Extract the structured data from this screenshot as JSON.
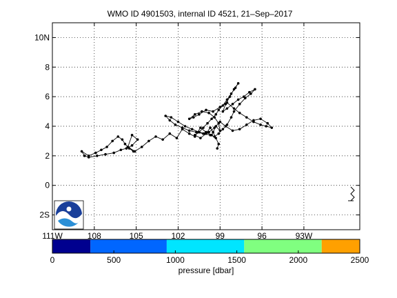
{
  "chart_data": {
    "type": "scatter",
    "title": "WMO ID 4901503, internal ID 4521, 21–Sep–2017",
    "xlabel": "",
    "ylabel": "",
    "xlim": [
      -111,
      -89
    ],
    "ylim": [
      -3,
      11
    ],
    "grid": true,
    "x_ticks": [
      {
        "value": -111,
        "label": "111W"
      },
      {
        "value": -108,
        "label": "108"
      },
      {
        "value": -105,
        "label": "105"
      },
      {
        "value": -102,
        "label": "102"
      },
      {
        "value": -99,
        "label": "99"
      },
      {
        "value": -96,
        "label": "96"
      },
      {
        "value": -93,
        "label": "93W"
      }
    ],
    "y_ticks": [
      {
        "value": -2,
        "label": "2S"
      },
      {
        "value": 0,
        "label": "0"
      },
      {
        "value": 2,
        "label": "2"
      },
      {
        "value": 4,
        "label": "4"
      },
      {
        "value": 6,
        "label": "6"
      },
      {
        "value": 8,
        "label": "8"
      },
      {
        "value": 10,
        "label": "10N"
      }
    ],
    "series": [
      {
        "x": [
          -105.2,
          -105.5,
          -105.8,
          -106.0,
          -106.3,
          -106.7,
          -107.1,
          -107.5,
          -107.9,
          -108.4,
          -108.9,
          -108.7,
          -108.4,
          -107.8,
          -107.2,
          -106.6,
          -106.1,
          -105.7,
          -105.3,
          -104.9,
          -105.3,
          -105.6,
          -105.1,
          -104.6,
          -104.1,
          -103.6,
          -103.1,
          -102.6,
          -102.1,
          -101.7,
          -101.2,
          -100.8,
          -100.4,
          -100.0,
          -99.6,
          -99.3,
          -99.0,
          -99.1,
          -99.4,
          -99.8,
          -100.3,
          -100.8,
          -101.2,
          -100.9,
          -100.5,
          -100.0,
          -99.5,
          -99.0,
          -98.5,
          -98.0,
          -97.6,
          -97.1,
          -96.6,
          -96.1,
          -95.7,
          -95.3,
          -95.6,
          -96.1,
          -96.6,
          -97.1,
          -97.6,
          -98.1,
          -98.6,
          -99.0,
          -99.4,
          -99.8,
          -100.2,
          -100.7,
          -101.2,
          -101.7,
          -102.2,
          -102.6,
          -102.9,
          -102.5,
          -102.0,
          -101.5,
          -101.0,
          -100.5,
          -100.1,
          -99.7,
          -99.4,
          -99.1,
          -98.8,
          -98.5,
          -98.2,
          -98.0,
          -97.6,
          -97.2,
          -96.8,
          -96.5,
          -96.9,
          -97.3,
          -97.7,
          -98.1,
          -98.5,
          -98.8,
          -98.6,
          -98.3,
          -98.0,
          -97.7,
          -97.9,
          -98.2,
          -98.5,
          -98.8,
          -99.1,
          -99.3,
          -99.6,
          -99.9,
          -100.2,
          -100.5,
          -100.8,
          -100.4,
          -100.0,
          -99.7,
          -99.5,
          -99.3,
          -99.1,
          -99.2
        ],
        "y": [
          2.3,
          2.5,
          2.8,
          3.1,
          3.3,
          3.0,
          2.6,
          2.4,
          2.2,
          2.0,
          2.3,
          2.0,
          1.9,
          2.0,
          2.1,
          2.2,
          2.4,
          2.5,
          2.7,
          3.1,
          3.4,
          2.6,
          2.3,
          2.6,
          3.0,
          3.3,
          3.1,
          3.5,
          3.2,
          3.8,
          3.5,
          3.3,
          3.9,
          3.6,
          3.4,
          4.0,
          3.7,
          4.2,
          4.6,
          4.9,
          5.0,
          4.8,
          4.5,
          4.6,
          4.8,
          5.1,
          5.0,
          5.3,
          5.6,
          5.2,
          4.9,
          4.6,
          4.3,
          4.1,
          4.0,
          3.9,
          4.2,
          4.5,
          4.4,
          4.1,
          3.8,
          3.7,
          4.0,
          4.3,
          3.9,
          3.6,
          3.5,
          3.6,
          3.7,
          3.9,
          4.1,
          4.4,
          4.7,
          4.6,
          4.3,
          4.0,
          3.8,
          3.6,
          3.5,
          3.4,
          3.3,
          3.5,
          3.8,
          4.1,
          4.6,
          5.0,
          5.5,
          5.9,
          6.2,
          6.5,
          6.3,
          6.0,
          5.8,
          5.5,
          5.2,
          5.0,
          5.5,
          6.0,
          6.5,
          6.9,
          6.6,
          6.2,
          5.8,
          5.4,
          5.1,
          4.8,
          4.5,
          4.2,
          3.9,
          3.6,
          3.4,
          3.2,
          3.5,
          3.9,
          3.6,
          3.2,
          2.8,
          2.5
        ]
      }
    ],
    "colorbar": {
      "label": "pressure [dbar]",
      "tick_values": [
        0,
        500,
        1000,
        1500,
        2000,
        2500
      ],
      "tick_labels": [
        "0",
        "500",
        "1000",
        "1500",
        "2000",
        "2500"
      ],
      "segments": [
        {
          "from": 0,
          "to": 310,
          "color": "#00008f"
        },
        {
          "from": 310,
          "to": 930,
          "color": "#0066ff"
        },
        {
          "from": 930,
          "to": 1560,
          "color": "#00e5ff"
        },
        {
          "from": 1560,
          "to": 2190,
          "color": "#80ff80"
        },
        {
          "from": 2190,
          "to": 2500,
          "color": "#ffa000"
        }
      ]
    },
    "logo": {
      "text": "NOAA",
      "icon": "noaa-logo-icon"
    },
    "symbol": {
      "icon": "north-arrow-icon"
    }
  }
}
